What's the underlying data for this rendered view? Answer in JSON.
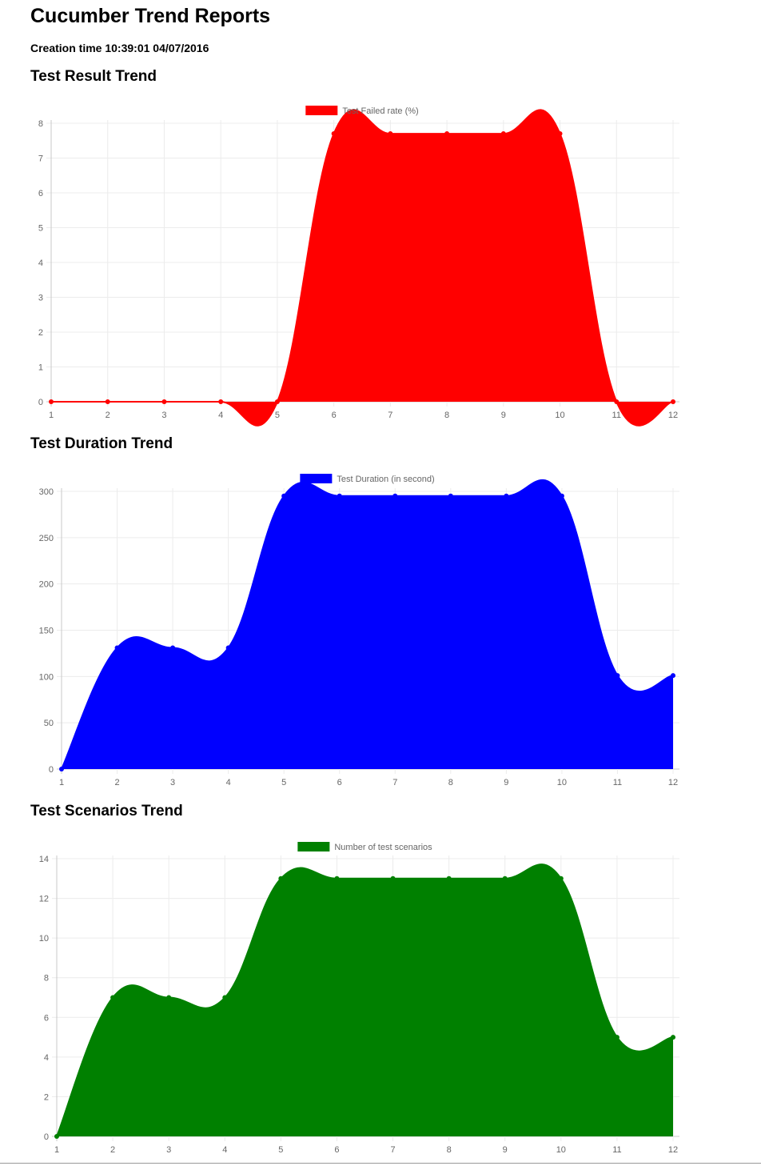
{
  "header": {
    "title": "Cucumber Trend Reports",
    "creation_time": "Creation time 10:39:01 04/07/2016"
  },
  "chart_data": [
    {
      "type": "area",
      "section_title": "Test Result Trend",
      "legend": "Test Failed rate (%)",
      "color": "#ff0000",
      "x": [
        1,
        2,
        3,
        4,
        5,
        6,
        7,
        8,
        9,
        10,
        11,
        12
      ],
      "values": [
        0,
        0,
        0,
        0,
        0,
        7.7,
        7.7,
        7.7,
        7.7,
        7.7,
        0,
        0
      ],
      "ylim": [
        0,
        8
      ],
      "yticks": [
        0,
        1,
        2,
        3,
        4,
        5,
        6,
        7,
        8
      ],
      "grid": true,
      "legend_position": "top-center"
    },
    {
      "type": "area",
      "section_title": "Test Duration Trend",
      "legend": "Test Duration (in second)",
      "color": "#0000ff",
      "x": [
        1,
        2,
        3,
        4,
        5,
        6,
        7,
        8,
        9,
        10,
        11,
        12
      ],
      "values": [
        0,
        131,
        131,
        131,
        295,
        295,
        295,
        295,
        295,
        295,
        101,
        101
      ],
      "ylim": [
        0,
        300
      ],
      "yticks": [
        0,
        50,
        100,
        150,
        200,
        250,
        300
      ],
      "grid": true,
      "legend_position": "top-center"
    },
    {
      "type": "area",
      "section_title": "Test Scenarios Trend",
      "legend": "Number of test scenarios",
      "color": "#008000",
      "x": [
        1,
        2,
        3,
        4,
        5,
        6,
        7,
        8,
        9,
        10,
        11,
        12
      ],
      "values": [
        0,
        7,
        7,
        7,
        13,
        13,
        13,
        13,
        13,
        13,
        5,
        5
      ],
      "ylim": [
        0,
        14
      ],
      "yticks": [
        0,
        2,
        4,
        6,
        8,
        10,
        12,
        14
      ],
      "grid": true,
      "legend_position": "top-center"
    }
  ]
}
